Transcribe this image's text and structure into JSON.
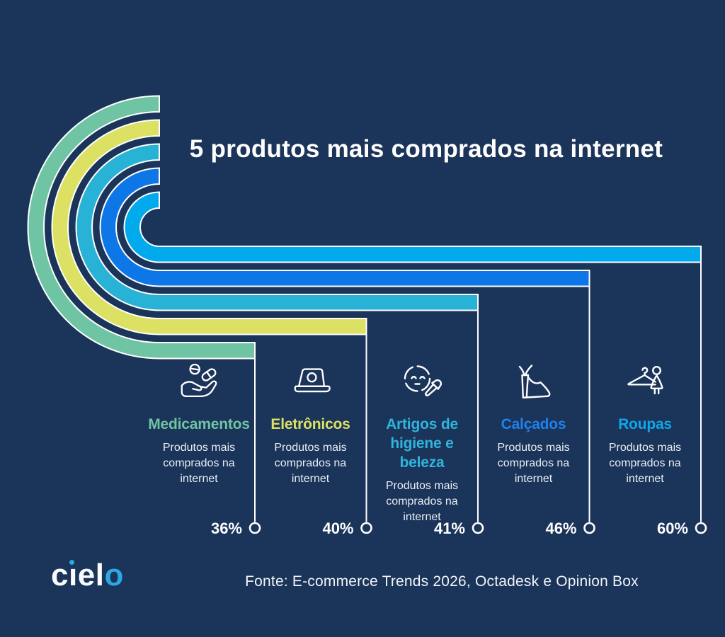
{
  "header": {
    "title": "5 produtos mais comprados na internet"
  },
  "brand": {
    "logo_text": "cielo",
    "logo_accent_color": "#2BA9E2"
  },
  "footer": {
    "source": "Fonte: E-commerce Trends 2026, Octadesk e Opinion Box"
  },
  "chart_data": {
    "type": "bar",
    "subtype": "ranked-horizontal-arc-infographic",
    "title": "5 produtos mais comprados na internet",
    "unit": "%",
    "categories": [
      "Medicamentos",
      "Eletrônicos",
      "Artigos de higiene e beleza",
      "Calçados",
      "Roupas"
    ],
    "values": [
      36,
      40,
      41,
      46,
      60
    ],
    "legend": "none",
    "grid": false,
    "note": "bars are rank-stepped, longest bar = highest percent (Roupas 60%)",
    "colors": {
      "background": "#1B3459",
      "outline": "#FFFFFF",
      "text": "#FFFFFF",
      "description_text": "#E9EEF4"
    },
    "items": [
      {
        "label": "Medicamentos",
        "value": 36,
        "percent_label": "36%",
        "description": "Produtos mais comprados na internet",
        "color": "#6FC4A4",
        "label_color": "#6FC4A4",
        "icon": "pills-hand-icon"
      },
      {
        "label": "Eletrônicos",
        "value": 40,
        "percent_label": "40%",
        "description": "Produtos mais comprados na internet",
        "color": "#DCE164",
        "label_color": "#DCE164",
        "icon": "laptop-icon"
      },
      {
        "label": "Artigos de higiene e beleza",
        "value": 41,
        "percent_label": "41%",
        "description": "Produtos mais comprados na internet",
        "color": "#27B2D6",
        "label_color": "#2FB4DC",
        "icon": "face-brush-icon"
      },
      {
        "label": "Calçados",
        "value": 46,
        "percent_label": "46%",
        "description": "Produtos mais comprados na internet",
        "color": "#0D77E8",
        "label_color": "#1E82EC",
        "icon": "heel-shoe-icon"
      },
      {
        "label": "Roupas",
        "value": 60,
        "percent_label": "60%",
        "description": "Produtos mais comprados na internet",
        "color": "#00AAED",
        "label_color": "#0FA8EA",
        "icon": "hanger-dress-icon"
      }
    ]
  }
}
